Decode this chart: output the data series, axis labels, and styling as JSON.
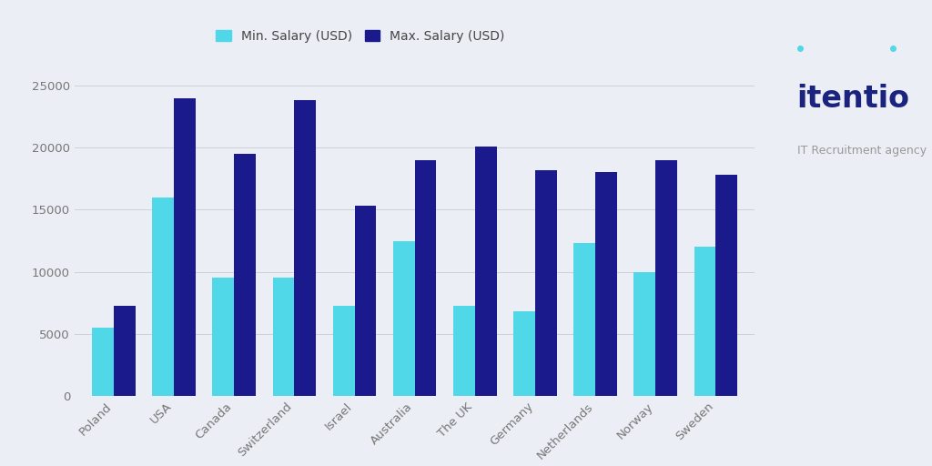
{
  "categories": [
    "Poland",
    "USA",
    "Canada",
    "Switzerland",
    "Israel",
    "Australia",
    "The UK",
    "Germany",
    "Netherlands",
    "Norway",
    "Sweden"
  ],
  "min_salaries": [
    5500,
    16000,
    9500,
    9500,
    7300,
    12500,
    7300,
    6800,
    12300,
    10000,
    12000
  ],
  "max_salaries": [
    7300,
    24000,
    19500,
    23800,
    15300,
    19000,
    20100,
    18200,
    18000,
    19000,
    17800
  ],
  "min_color": "#50D8E8",
  "max_color": "#1A1A8C",
  "background_color": "#ECEEF5",
  "legend_min": "Min. Salary (USD)",
  "legend_max": "Max. Salary (USD)",
  "ylim": [
    0,
    27000
  ],
  "yticks": [
    0,
    5000,
    10000,
    15000,
    20000,
    25000
  ],
  "logo_title": "itentio",
  "logo_subtitle": "IT Recruitment agency",
  "logo_title_color": "#1A237E",
  "logo_subtitle_color": "#999999",
  "bar_width": 0.36,
  "grid_color": "#D0D0D8",
  "tick_color": "#777777",
  "tick_fontsize": 9.5
}
